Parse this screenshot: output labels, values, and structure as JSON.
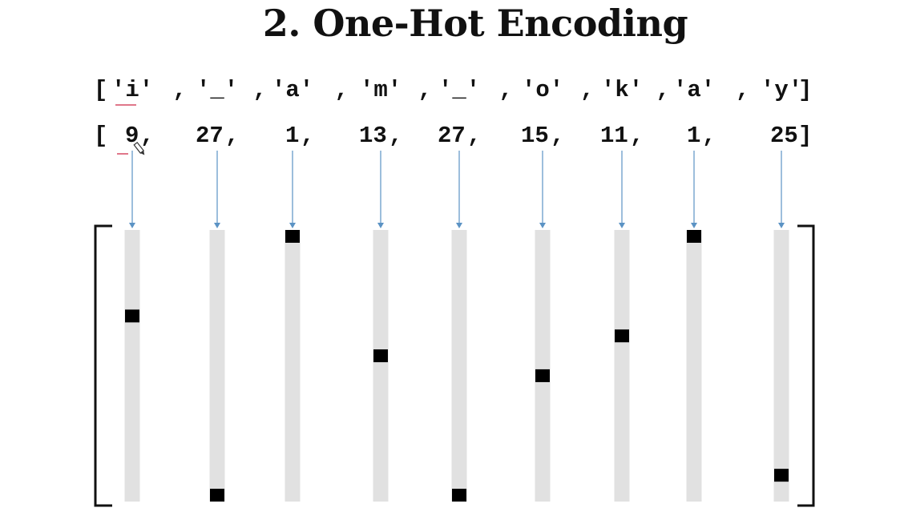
{
  "title": "2. One-Hot Encoding",
  "characters": {
    "open": "[",
    "close": "]",
    "separator": ",",
    "items": [
      "'i'",
      "'_'",
      "'a'",
      "'m'",
      "'_'",
      "'o'",
      "'k'",
      "'a'",
      "'y'"
    ]
  },
  "indices": {
    "open": "[",
    "close": "]",
    "separator": ",",
    "items": [
      "9",
      "27",
      "1",
      "13",
      "27",
      "15",
      "11",
      "1",
      "25"
    ]
  },
  "vector_length": 27,
  "active_positions": [
    9,
    27,
    1,
    13,
    27,
    15,
    11,
    1,
    25
  ],
  "colors": {
    "text": "#111111",
    "arrow": "#5b93c4",
    "bar": "#e1e1e1",
    "hot_cell": "#000000",
    "bracket": "#111111",
    "underline": "#e0778a"
  },
  "icons": [
    "pen-cursor-icon"
  ]
}
